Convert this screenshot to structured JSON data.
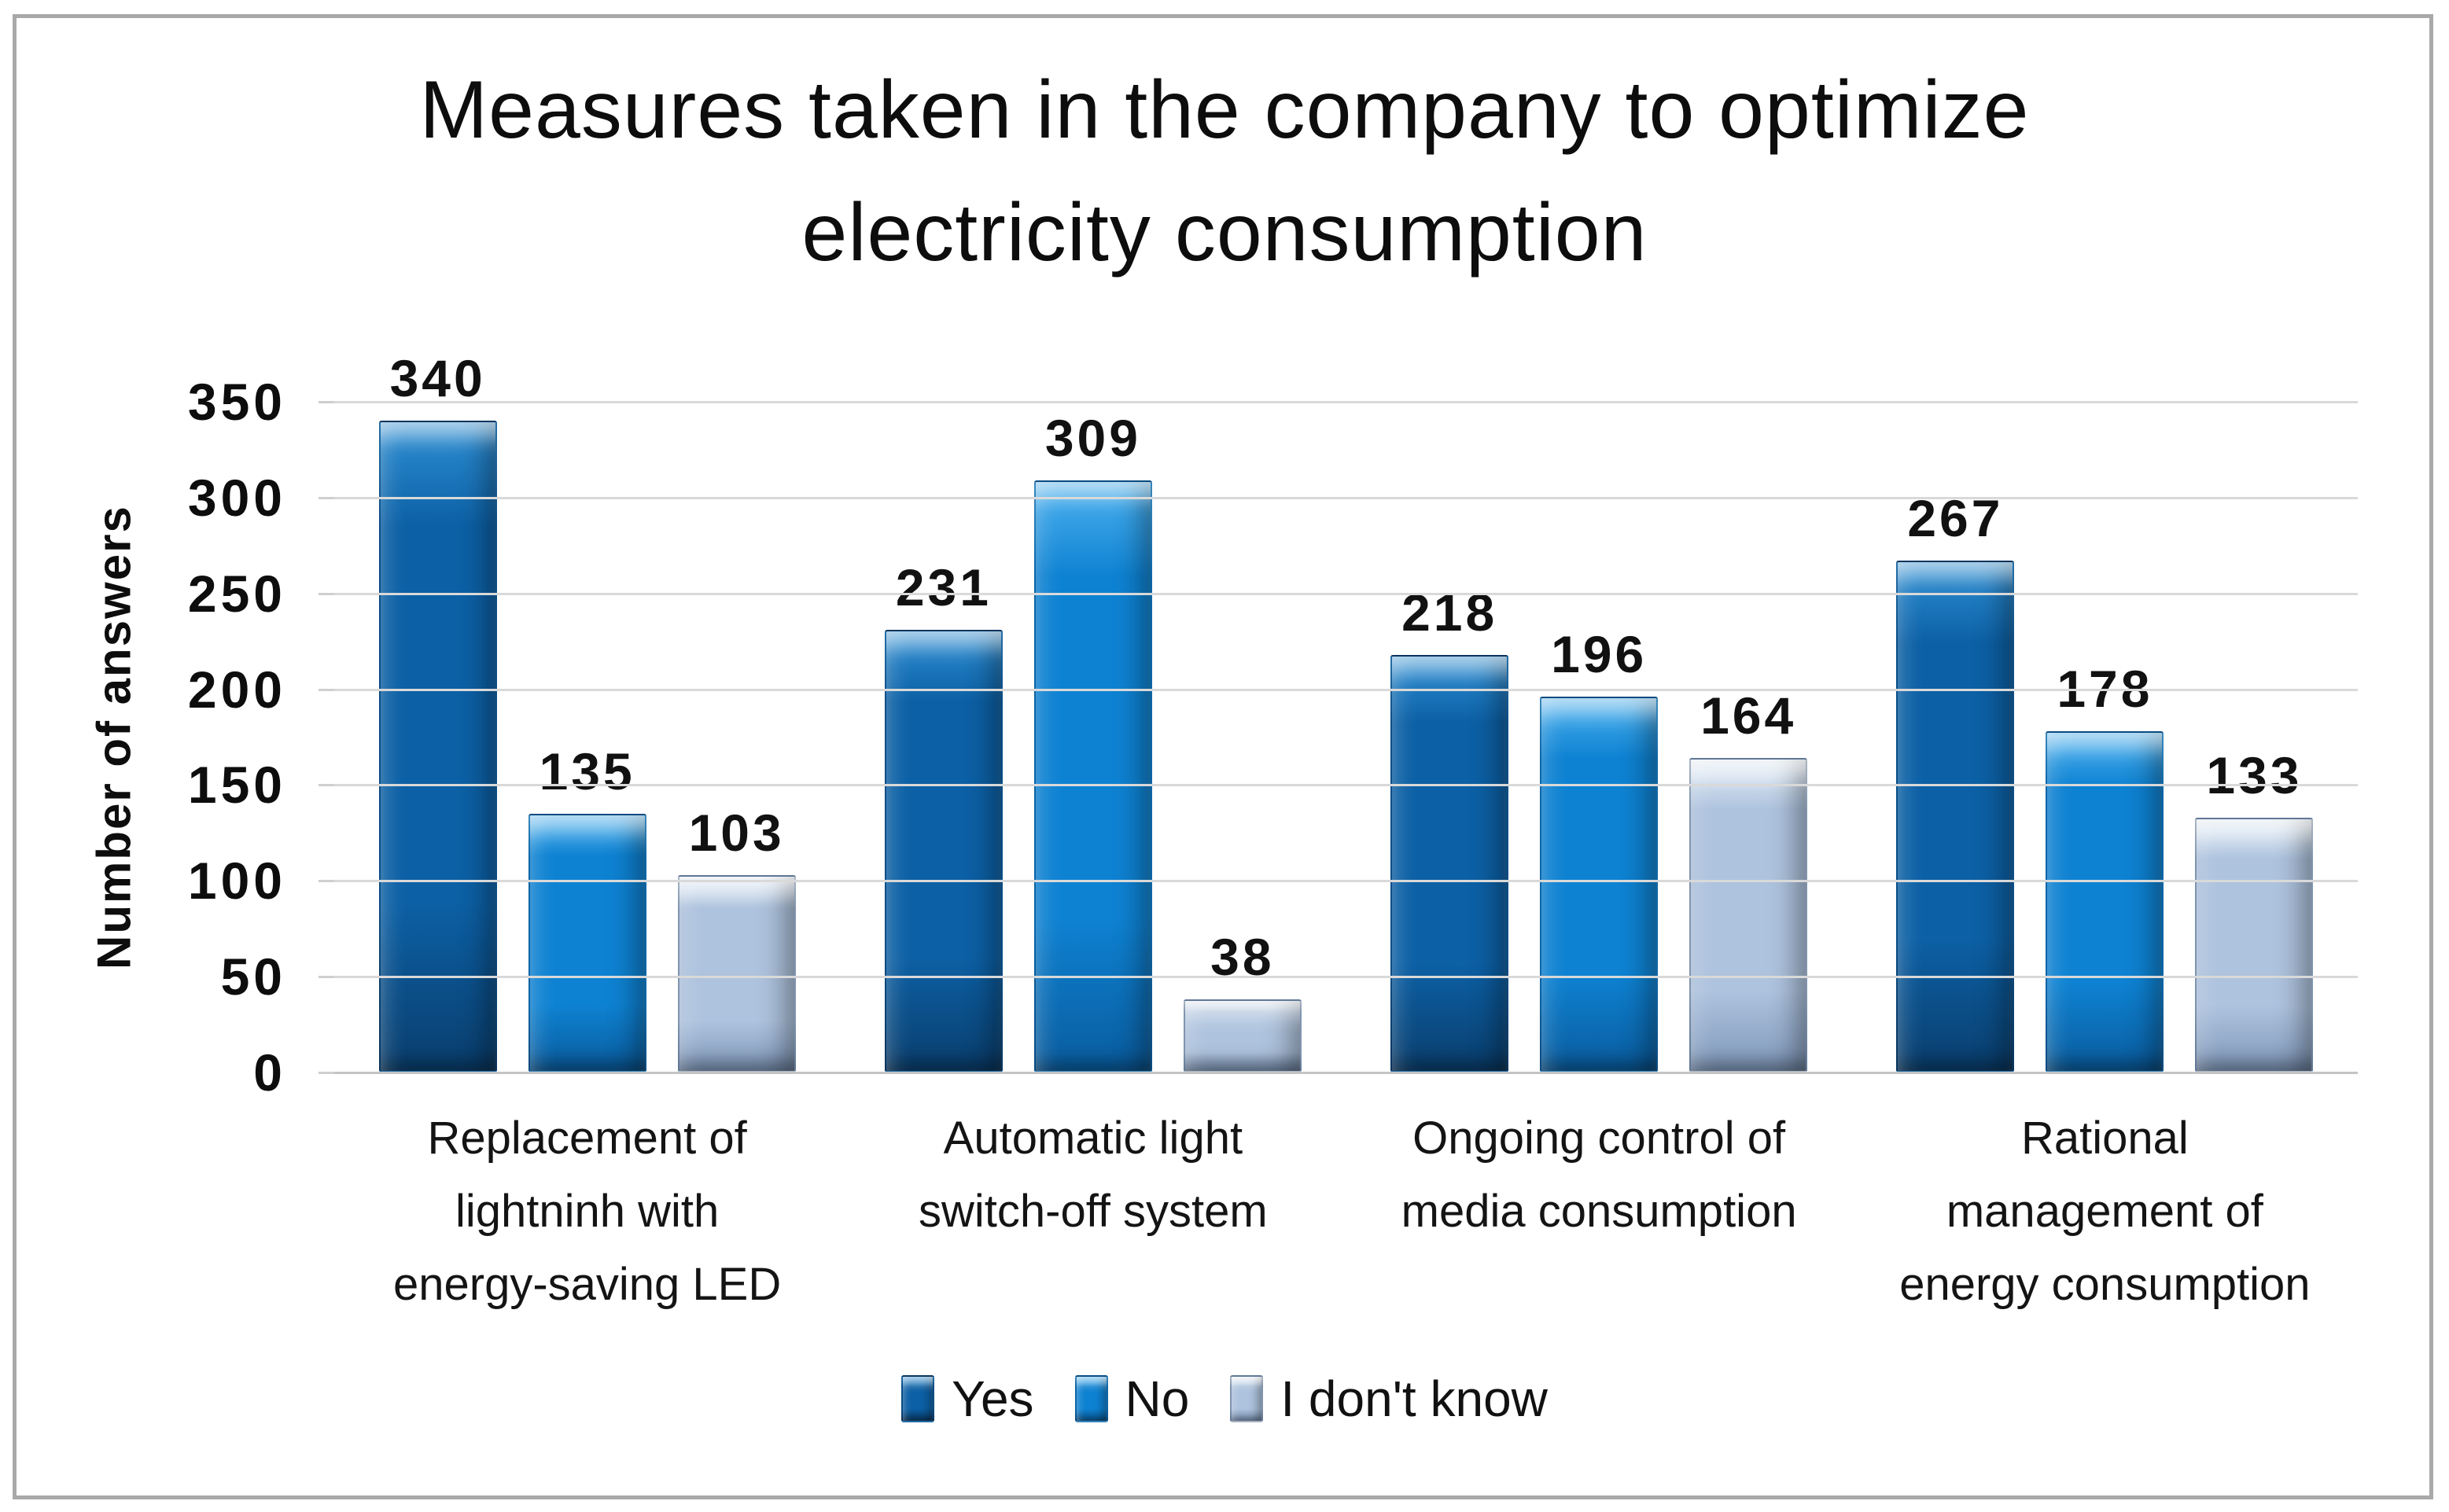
{
  "chart_data": {
    "type": "bar",
    "title": "Measures taken in the company to optimize electricity consumption",
    "xlabel": "",
    "ylabel": "Number of answers",
    "ylim": [
      0,
      350
    ],
    "ytick_interval": 50,
    "yticks": [
      350,
      300,
      250,
      200,
      150,
      100,
      50,
      0
    ],
    "grid": true,
    "legend_position": "bottom",
    "categories": [
      "Replacement of lightninh with energy-saving LED",
      "Automatic light switch-off system",
      "Ongoing control of media consumption",
      "Rational management of energy consumption"
    ],
    "category_lines": [
      [
        "Replacement of",
        "lightninh with",
        "energy-saving LED"
      ],
      [
        "Automatic light",
        "switch-off system"
      ],
      [
        "Ongoing control of",
        "media consumption"
      ],
      [
        "Rational",
        "management of",
        "energy consumption"
      ]
    ],
    "series": [
      {
        "name": "Yes",
        "values": [
          340,
          231,
          218,
          267
        ],
        "color": "#0c60a5",
        "color_light": "#2e8fd4",
        "color_dark": "#0a3e6d"
      },
      {
        "name": "No",
        "values": [
          135,
          309,
          196,
          178
        ],
        "color": "#0e82d2",
        "color_light": "#4db2f0",
        "color_dark": "#0a5c9e"
      },
      {
        "name": "I don't know",
        "values": [
          103,
          38,
          164,
          133
        ],
        "color": "#aec3de",
        "color_light": "#e9f1f9",
        "color_dark": "#8099bb"
      }
    ]
  },
  "colors": {
    "background": "#ffffff",
    "chart_border": "#a9a9a9",
    "gridline": "#d9d9d9",
    "axis_line": "#c4c4c4",
    "text": "#0d0d0d"
  }
}
